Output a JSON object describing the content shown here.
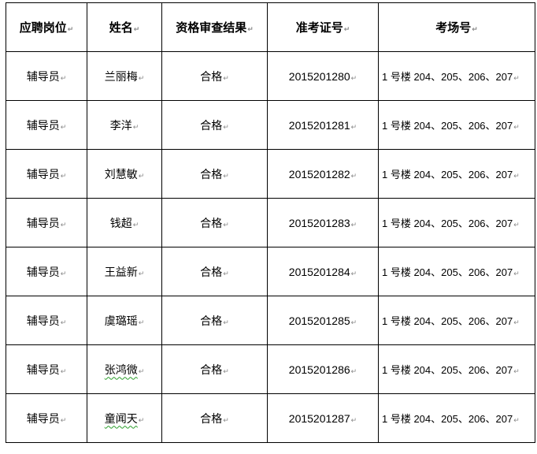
{
  "paragraph_mark": "↵",
  "headers": [
    "应聘岗位",
    "姓名",
    "资格审查结果",
    "准考证号",
    "考场号"
  ],
  "rows": [
    {
      "position": "辅导员",
      "name": "兰丽梅",
      "result": "合格",
      "ticket": "2015201280",
      "room": "1 号楼 204、205、206、207",
      "spell": false
    },
    {
      "position": "辅导员",
      "name": "李洋",
      "result": "合格",
      "ticket": "2015201281",
      "room": "1 号楼 204、205、206、207",
      "spell": false
    },
    {
      "position": "辅导员",
      "name": "刘慧敏",
      "result": "合格",
      "ticket": "2015201282",
      "room": "1 号楼 204、205、206、207",
      "spell": false
    },
    {
      "position": "辅导员",
      "name": "钱超",
      "result": "合格",
      "ticket": "2015201283",
      "room": "1 号楼 204、205、206、207",
      "spell": false
    },
    {
      "position": "辅导员",
      "name": "王益新",
      "result": "合格",
      "ticket": "2015201284",
      "room": "1 号楼 204、205、206、207",
      "spell": false
    },
    {
      "position": "辅导员",
      "name": "虞璐瑶",
      "result": "合格",
      "ticket": "2015201285",
      "room": "1 号楼 204、205、206、207",
      "spell": false
    },
    {
      "position": "辅导员",
      "name": "张鸿微",
      "result": "合格",
      "ticket": "2015201286",
      "room": "1 号楼 204、205、206、207",
      "spell": true
    },
    {
      "position": "辅导员",
      "name": "童闻天",
      "result": "合格",
      "ticket": "2015201287",
      "room": "1 号楼 204、205、206、207",
      "spell": true
    }
  ]
}
